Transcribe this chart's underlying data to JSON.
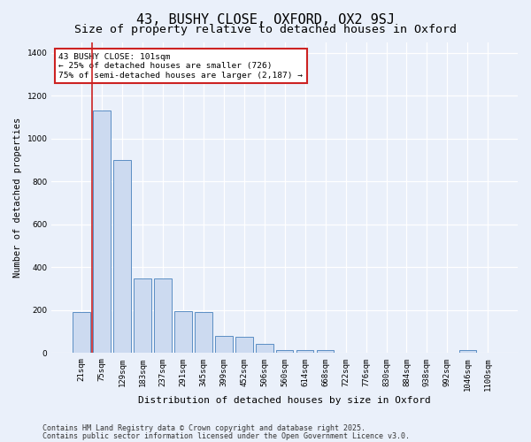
{
  "title1": "43, BUSHY CLOSE, OXFORD, OX2 9SJ",
  "title2": "Size of property relative to detached houses in Oxford",
  "xlabel": "Distribution of detached houses by size in Oxford",
  "ylabel": "Number of detached properties",
  "bar_categories": [
    "21sqm",
    "75sqm",
    "129sqm",
    "183sqm",
    "237sqm",
    "291sqm",
    "345sqm",
    "399sqm",
    "452sqm",
    "506sqm",
    "560sqm",
    "614sqm",
    "668sqm",
    "722sqm",
    "776sqm",
    "830sqm",
    "884sqm",
    "938sqm",
    "992sqm",
    "1046sqm",
    "1100sqm"
  ],
  "bar_values": [
    190,
    1130,
    900,
    350,
    350,
    195,
    190,
    80,
    75,
    45,
    15,
    15,
    15,
    0,
    0,
    0,
    0,
    0,
    0,
    15,
    0
  ],
  "bar_color": "#ccdaf0",
  "bar_edge_color": "#5b8ec4",
  "red_line_x": 0.5,
  "red_line_color": "#cc2222",
  "annotation_text": "43 BUSHY CLOSE: 101sqm\n← 25% of detached houses are smaller (726)\n75% of semi-detached houses are larger (2,187) →",
  "annotation_box_color": "#ffffff",
  "annotation_box_edge": "#cc2222",
  "ylim": [
    0,
    1450
  ],
  "yticks": [
    0,
    200,
    400,
    600,
    800,
    1000,
    1200,
    1400
  ],
  "footer1": "Contains HM Land Registry data © Crown copyright and database right 2025.",
  "footer2": "Contains public sector information licensed under the Open Government Licence v3.0.",
  "bg_color": "#eaf0fa",
  "plot_bg_color": "#eaf0fa",
  "grid_color": "#ffffff",
  "title1_fontsize": 11,
  "title2_fontsize": 9.5,
  "ylabel_fontsize": 7.5,
  "xlabel_fontsize": 8,
  "tick_fontsize": 6.5,
  "annot_fontsize": 6.8,
  "footer_fontsize": 6
}
